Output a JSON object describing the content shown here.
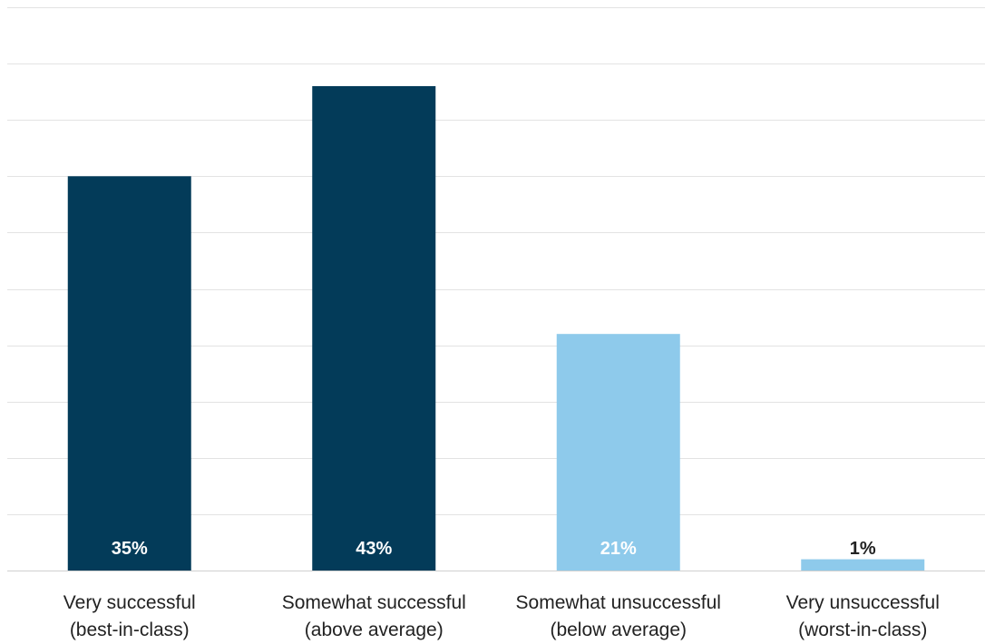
{
  "chart_data": {
    "type": "bar",
    "categories": [
      [
        "Very successful",
        "(best-in-class)"
      ],
      [
        "Somewhat successful",
        "(above average)"
      ],
      [
        "Somewhat unsuccessful",
        "(below average)"
      ],
      [
        "Very unsuccessful",
        "(worst-in-class)"
      ]
    ],
    "values": [
      35,
      43,
      21,
      1
    ],
    "data_labels": [
      "35%",
      "43%",
      "21%",
      "1%"
    ],
    "ylim": [
      0,
      50
    ],
    "grid": true,
    "legend": "none",
    "bar_colors": [
      "#033b59",
      "#033b59",
      "#8ecaeb",
      "#8ecaeb"
    ],
    "label_colors": [
      "#ffffff",
      "#ffffff",
      "#ffffff",
      "#222222"
    ],
    "gridline_color": "#e3e3e3",
    "axis_color": "#d0d0d0"
  }
}
